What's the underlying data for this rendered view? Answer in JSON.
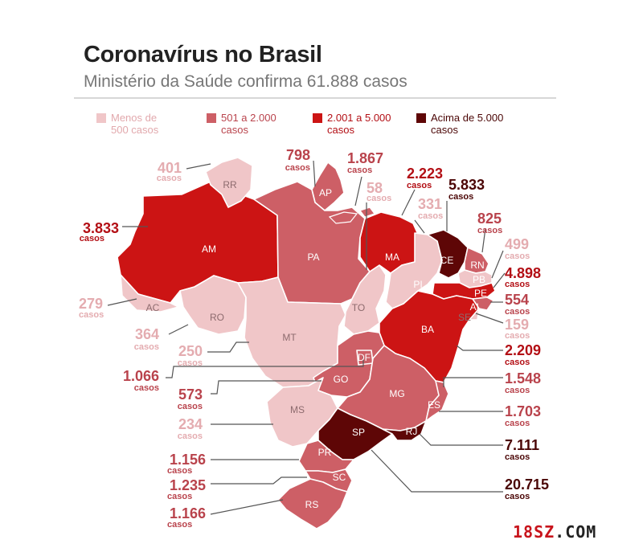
{
  "title": "Coronavírus no Brasil",
  "subtitle": "Ministério da Saúde confirma 61.888 casos",
  "colors": {
    "low": "#f0c6c8",
    "mid": "#cd5f66",
    "high": "#cc1414",
    "top": "#5e0606",
    "line": "#555555"
  },
  "legend": [
    {
      "label_line1": "Menos de",
      "label_line2": "500 casos",
      "level": "low"
    },
    {
      "label_line1": "501 a 2.000",
      "label_line2": "casos",
      "level": "mid"
    },
    {
      "label_line1": "2.001 a 5.000",
      "label_line2": "casos",
      "level": "high"
    },
    {
      "label_line1": "Acima de 5.000",
      "label_line2": "casos",
      "level": "top"
    }
  ],
  "unit": "casos",
  "states": [
    {
      "abbr": "RR",
      "cases": "401",
      "level": "low"
    },
    {
      "abbr": "AP",
      "cases": "798",
      "level": "mid"
    },
    {
      "abbr": "PA",
      "cases": "1.867",
      "level": "mid"
    },
    {
      "abbr": "MA",
      "cases": "2.223",
      "level": "high"
    },
    {
      "abbr": "CE",
      "cases": "5.833",
      "level": "top"
    },
    {
      "abbr": "TO",
      "cases": "58",
      "level": "low"
    },
    {
      "abbr": "PI",
      "cases": "331",
      "level": "low"
    },
    {
      "abbr": "RN",
      "cases": "825",
      "level": "mid"
    },
    {
      "abbr": "AM",
      "cases": "3.833",
      "level": "high"
    },
    {
      "abbr": "PB",
      "cases": "499",
      "level": "low"
    },
    {
      "abbr": "PE",
      "cases": "4.898",
      "level": "high"
    },
    {
      "abbr": "AL",
      "cases": "554",
      "level": "mid"
    },
    {
      "abbr": "SE",
      "cases": "159",
      "level": "low"
    },
    {
      "abbr": "AC",
      "cases": "279",
      "level": "low"
    },
    {
      "abbr": "RO",
      "cases": "364",
      "level": "low"
    },
    {
      "abbr": "MT",
      "cases": "250",
      "level": "low"
    },
    {
      "abbr": "BA",
      "cases": "2.209",
      "level": "high"
    },
    {
      "abbr": "DF",
      "cases": "1.066",
      "level": "mid"
    },
    {
      "abbr": "GO",
      "cases": "573",
      "level": "mid"
    },
    {
      "abbr": "MG",
      "cases": "1.548",
      "level": "mid"
    },
    {
      "abbr": "ES",
      "cases": "1.703",
      "level": "mid"
    },
    {
      "abbr": "MS",
      "cases": "234",
      "level": "low"
    },
    {
      "abbr": "SP",
      "cases": "20.715",
      "level": "top"
    },
    {
      "abbr": "RJ",
      "cases": "7.111",
      "level": "top"
    },
    {
      "abbr": "PR",
      "cases": "1.156",
      "level": "mid"
    },
    {
      "abbr": "SC",
      "cases": "1.235",
      "level": "mid"
    },
    {
      "abbr": "RS",
      "cases": "1.166",
      "level": "mid"
    }
  ],
  "watermark": {
    "part1": "18SZ",
    "part2": ".COM"
  }
}
